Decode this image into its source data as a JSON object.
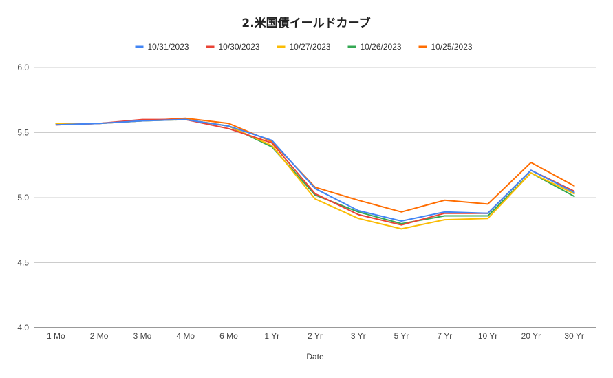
{
  "chart_data": {
    "type": "line",
    "title": "2.米国債イールドカーブ",
    "xlabel": "Date",
    "ylabel": "",
    "ylim": [
      4.0,
      6.0
    ],
    "yticks": [
      "4.0",
      "4.5",
      "5.0",
      "5.5",
      "6.0"
    ],
    "grid": true,
    "legend_position": "top",
    "categories": [
      "1 Mo",
      "2 Mo",
      "3 Mo",
      "4 Mo",
      "6 Mo",
      "1 Yr",
      "2 Yr",
      "3 Yr",
      "5 Yr",
      "7 Yr",
      "10 Yr",
      "20 Yr",
      "30 Yr"
    ],
    "series": [
      {
        "name": "10/31/2023",
        "color": "#4285f4",
        "values": [
          5.56,
          5.57,
          5.59,
          5.6,
          5.55,
          5.44,
          5.07,
          4.9,
          4.82,
          4.89,
          4.88,
          5.21,
          5.04
        ]
      },
      {
        "name": "10/30/2023",
        "color": "#ea4335",
        "values": [
          5.56,
          5.57,
          5.6,
          5.6,
          5.53,
          5.42,
          5.03,
          4.87,
          4.79,
          4.88,
          4.88,
          5.21,
          5.05
        ]
      },
      {
        "name": "10/27/2023",
        "color": "#fbbc04",
        "values": [
          5.57,
          5.57,
          5.59,
          5.6,
          5.55,
          5.4,
          4.99,
          4.84,
          4.76,
          4.83,
          4.84,
          5.19,
          5.03
        ]
      },
      {
        "name": "10/26/2023",
        "color": "#34a853",
        "values": [
          5.57,
          5.57,
          5.59,
          5.6,
          5.55,
          5.39,
          5.02,
          4.89,
          4.8,
          4.86,
          4.86,
          5.19,
          5.01
        ]
      },
      {
        "name": "10/25/2023",
        "color": "#ff6d01",
        "values": [
          5.56,
          5.57,
          5.59,
          5.61,
          5.57,
          5.43,
          5.08,
          4.98,
          4.89,
          4.98,
          4.95,
          5.27,
          5.09
        ]
      }
    ]
  }
}
